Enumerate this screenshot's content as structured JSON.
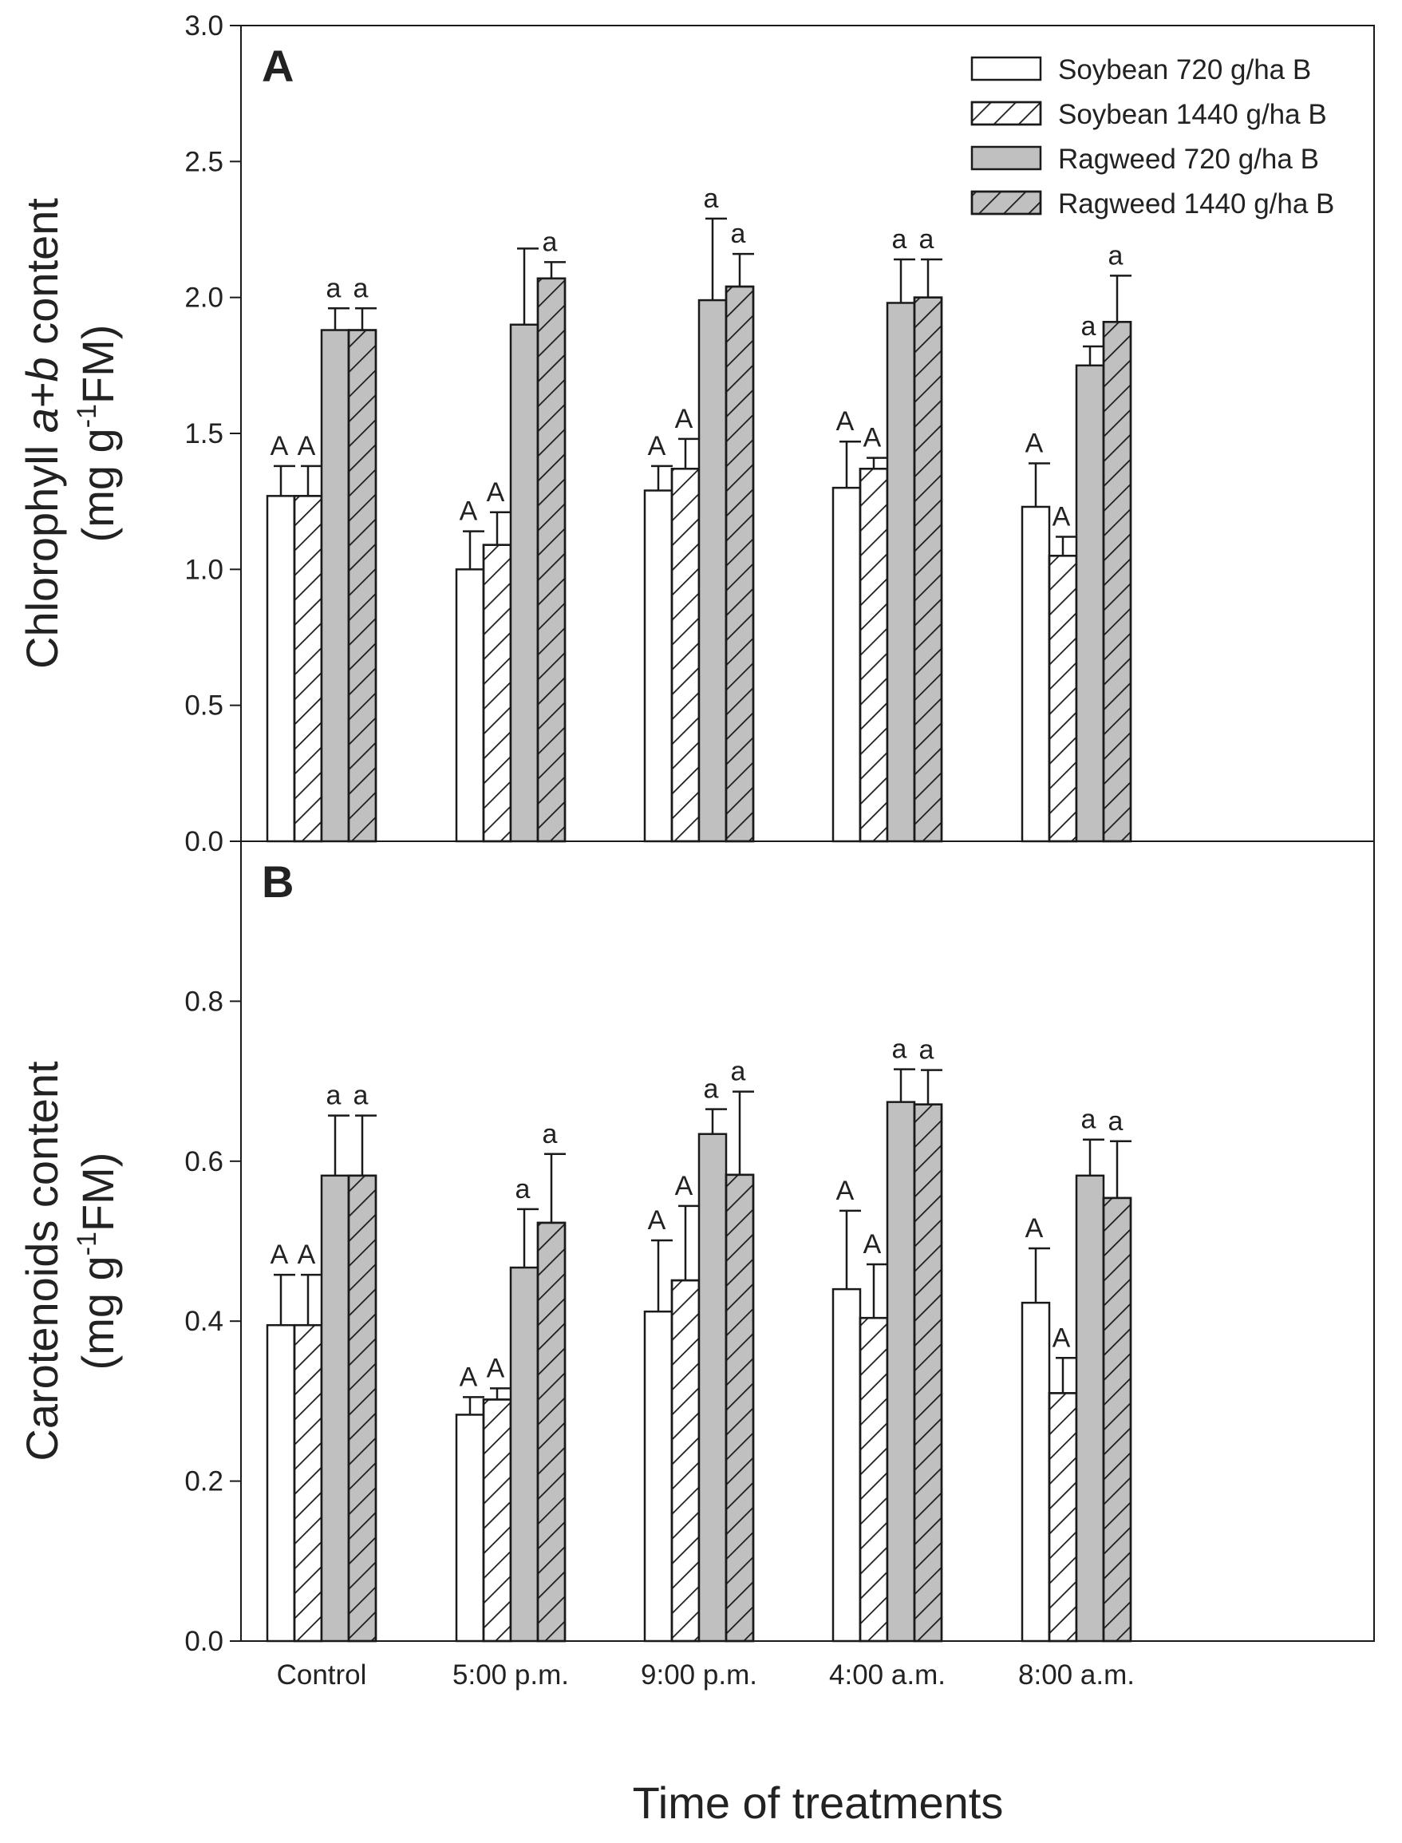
{
  "chart_data": [
    {
      "type": "bar",
      "panel": "A",
      "ylabel_line1": "Chlorophyll a+b content",
      "ylabel_line1_parts": [
        "Chlorophyll ",
        "a",
        "+",
        "b",
        " content"
      ],
      "ylabel_line2_parts": [
        "(mg g",
        "-1",
        "FM)"
      ],
      "ylim": [
        0,
        3.0
      ],
      "yticks": [
        "0.0",
        "0.5",
        "1.0",
        "1.5",
        "2.0",
        "2.5",
        "3.0"
      ],
      "ytick_values": [
        0,
        0.5,
        1.0,
        1.5,
        2.0,
        2.5,
        3.0
      ],
      "categories": [
        "Control",
        "5:00 p.m.",
        "9:00 p.m.",
        "4:00 a.m.",
        "8:00 a.m."
      ],
      "series": [
        {
          "name": "Soybean 720 g/ha B",
          "values": [
            1.27,
            1.0,
            1.29,
            1.3,
            1.23
          ],
          "errors": [
            0.11,
            0.14,
            0.09,
            0.17,
            0.16
          ],
          "labels": [
            "A",
            "A",
            "A",
            "A",
            "A"
          ]
        },
        {
          "name": "Soybean 1440 g/ha B",
          "values": [
            1.27,
            1.09,
            1.37,
            1.37,
            1.05
          ],
          "errors": [
            0.11,
            0.12,
            0.11,
            0.04,
            0.07
          ],
          "labels": [
            "A",
            "A",
            "A",
            "A",
            "A"
          ]
        },
        {
          "name": "Ragweed 720 g/ha B",
          "values": [
            1.88,
            1.9,
            1.99,
            1.98,
            1.75
          ],
          "errors": [
            0.08,
            0.28,
            0.3,
            0.16,
            0.07
          ],
          "labels": [
            "a",
            "",
            "a",
            "a",
            "a"
          ]
        },
        {
          "name": "Ragweed 1440 g/ha B",
          "values": [
            1.88,
            2.07,
            2.04,
            2.0,
            1.91
          ],
          "errors": [
            0.08,
            0.06,
            0.12,
            0.14,
            0.17
          ],
          "labels": [
            "a",
            "a",
            "a",
            "a",
            "a"
          ]
        }
      ]
    },
    {
      "type": "bar",
      "panel": "B",
      "ylabel_line1": "Carotenoids content",
      "ylabel_line2_parts": [
        "(mg g",
        "-1",
        "FM)"
      ],
      "ylim": [
        0,
        1.0
      ],
      "yticks": [
        "0.0",
        "0.2",
        "0.4",
        "0.6",
        "0.8"
      ],
      "ytick_values": [
        0,
        0.2,
        0.4,
        0.6,
        0.8
      ],
      "categories": [
        "Control",
        "5:00 p.m.",
        "9:00 p.m.",
        "4:00 a.m.",
        "8:00 a.m."
      ],
      "series": [
        {
          "name": "Soybean 720 g/ha B",
          "values": [
            0.395,
            0.283,
            0.412,
            0.44,
            0.423
          ],
          "errors": [
            0.063,
            0.022,
            0.089,
            0.098,
            0.068
          ],
          "labels": [
            "A",
            "A",
            "A",
            "A",
            "A"
          ]
        },
        {
          "name": "Soybean 1440 g/ha B",
          "values": [
            0.395,
            0.302,
            0.451,
            0.404,
            0.31
          ],
          "errors": [
            0.063,
            0.014,
            0.093,
            0.067,
            0.044
          ],
          "labels": [
            "A",
            "A",
            "A",
            "A",
            "A"
          ]
        },
        {
          "name": "Ragweed 720 g/ha B",
          "values": [
            0.582,
            0.467,
            0.634,
            0.674,
            0.582
          ],
          "errors": [
            0.075,
            0.073,
            0.031,
            0.041,
            0.045
          ],
          "labels": [
            "a",
            "a",
            "a",
            "a",
            "a"
          ]
        },
        {
          "name": "Ragweed 1440 g/ha B",
          "values": [
            0.582,
            0.523,
            0.583,
            0.671,
            0.554
          ],
          "errors": [
            0.075,
            0.086,
            0.104,
            0.043,
            0.071
          ],
          "labels": [
            "a",
            "a",
            "a",
            "a",
            "a"
          ]
        }
      ]
    }
  ],
  "xlabel": "Time of treatments",
  "legend_entries": [
    "Soybean 720 g/ha B",
    "Soybean 1440 g/ha B",
    "Ragweed 720 g/ha B",
    "Ragweed 1440 g/ha B"
  ],
  "colors": {
    "soybean": "#ffffff",
    "ragweed": "#c0c0c0",
    "stroke": "#1a1a1a"
  }
}
